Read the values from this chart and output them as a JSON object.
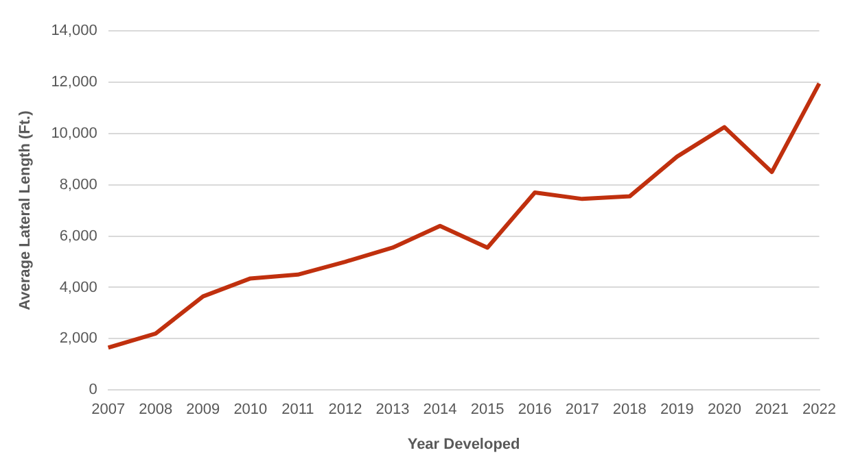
{
  "chart_data": {
    "type": "line",
    "xlabel": "Year Developed",
    "ylabel": "Average Lateral Length (Ft.)",
    "categories": [
      "2007",
      "2008",
      "2009",
      "2010",
      "2011",
      "2012",
      "2013",
      "2014",
      "2015",
      "2016",
      "2017",
      "2018",
      "2019",
      "2020",
      "2021",
      "2022"
    ],
    "series": [
      {
        "color": "#c0300e",
        "values": [
          1650,
          2200,
          3650,
          4350,
          4500,
          5000,
          5550,
          6400,
          5550,
          7700,
          7450,
          7550,
          9100,
          10250,
          8500,
          11950
        ]
      }
    ],
    "ylim": [
      0,
      14000
    ],
    "yticks": [
      {
        "value": 0,
        "label": "0"
      },
      {
        "value": 2000,
        "label": "2,000"
      },
      {
        "value": 4000,
        "label": "4,000"
      },
      {
        "value": 6000,
        "label": "6,000"
      },
      {
        "value": 8000,
        "label": "8,000"
      },
      {
        "value": 10000,
        "label": "10,000"
      },
      {
        "value": 12000,
        "label": "12,000"
      },
      {
        "value": 14000,
        "label": "14,000"
      }
    ],
    "grid": "y",
    "legend": false,
    "marker": "none",
    "line_style": "solid"
  }
}
